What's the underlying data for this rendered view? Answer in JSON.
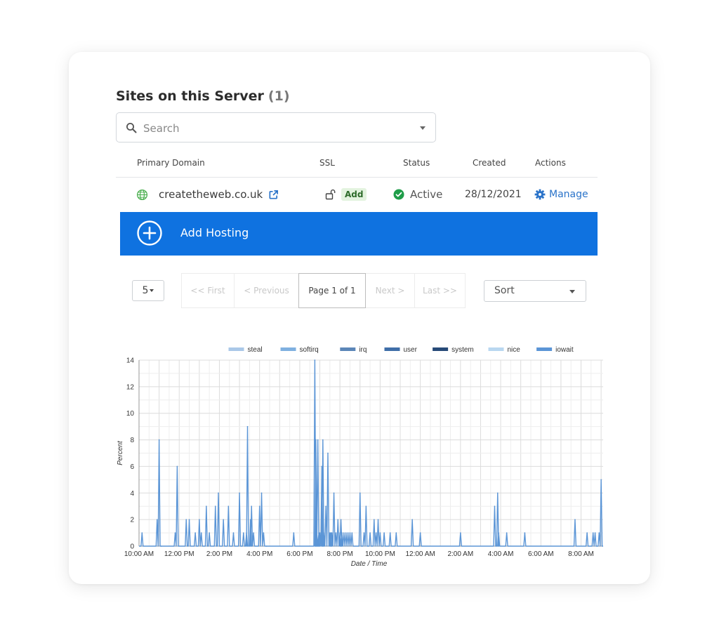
{
  "sites": {
    "title": "Sites on this Server",
    "count": "(1)",
    "search": {
      "placeholder": "Search"
    },
    "columns": [
      "Primary Domain",
      "SSL",
      "Status",
      "Created",
      "Actions"
    ],
    "rows": [
      {
        "domain": "createtheweb.co.uk",
        "ssl": "Add",
        "status": "Active",
        "created": "28/12/2021",
        "action": "Manage"
      }
    ],
    "add_hosting_label": "Add Hosting"
  },
  "pagination": {
    "per_page": "5",
    "first": "<< First",
    "previous": "< Previous",
    "current": "Page 1 of 1",
    "next": "Next >",
    "last": "Last >>",
    "sort_label": "Sort"
  },
  "colors": {
    "accent": "#0f72e0",
    "link": "#2a73c9",
    "active_status": "#1f9d49",
    "domain_icon": "#4caf50"
  },
  "icons": [
    "search-icon",
    "globe-icon",
    "external-link-icon",
    "unlock-icon",
    "check-circle-icon",
    "gear-icon",
    "plus-circle-icon"
  ],
  "chart_data": {
    "type": "line",
    "title": "",
    "xlabel": "Date / Time",
    "ylabel": "Percent",
    "ylim": [
      0,
      14
    ],
    "yticks": [
      0,
      2,
      4,
      6,
      8,
      10,
      12,
      14
    ],
    "xticks": [
      "10:00 AM",
      "12:00 PM",
      "2:00 PM",
      "4:00 PM",
      "6:00 PM",
      "8:00 PM",
      "10:00 PM",
      "12:00 AM",
      "2:00 AM",
      "4:00 AM",
      "6:00 AM",
      "8:00 AM"
    ],
    "x_range_hours": [
      0,
      23.1
    ],
    "grid": true,
    "legend_position": "top",
    "legend": [
      {
        "name": "steal",
        "color": "#aac8e8"
      },
      {
        "name": "softirq",
        "color": "#7fb0e0"
      },
      {
        "name": "irq",
        "color": "#5b86b8"
      },
      {
        "name": "user",
        "color": "#3f6ea8"
      },
      {
        "name": "system",
        "color": "#274a78"
      },
      {
        "name": "nice",
        "color": "#b9d7f0"
      },
      {
        "name": "iowait",
        "color": "#5b95d6"
      }
    ],
    "series": [
      {
        "name": "iowait",
        "x": [
          0.15,
          0.9,
          1.0,
          1.1,
          1.8,
          1.9,
          2.35,
          2.5,
          2.8,
          3.0,
          3.1,
          3.35,
          3.5,
          3.8,
          3.95,
          4.2,
          4.45,
          4.7,
          5.0,
          5.2,
          5.35,
          5.4,
          5.55,
          5.6,
          5.7,
          6.0,
          6.1,
          6.2,
          6.35,
          7.7,
          8.75,
          8.8,
          8.85,
          8.9,
          8.95,
          9.0,
          9.1,
          9.15,
          9.2,
          9.3,
          9.4,
          9.5,
          9.55,
          9.6,
          9.7,
          9.8,
          9.9,
          10.0,
          10.05,
          10.1,
          10.2,
          10.3,
          10.4,
          10.5,
          10.6,
          11.0,
          11.2,
          11.3,
          11.5,
          11.7,
          11.8,
          11.9,
          12.0,
          12.2,
          12.5,
          12.8,
          13.6,
          14.0,
          16.0,
          17.7,
          17.85,
          17.9,
          18.3,
          19.2,
          21.7,
          22.3,
          22.6,
          22.7,
          22.9,
          23.0
        ],
        "y": [
          1,
          2,
          8,
          0,
          1,
          6,
          2,
          2,
          1,
          2,
          1,
          3,
          1,
          3,
          4,
          2,
          3,
          1,
          4,
          1,
          1,
          9,
          2,
          3,
          1,
          3,
          4,
          1,
          0,
          1,
          14,
          8,
          1,
          8,
          1,
          1,
          6,
          8,
          1,
          3,
          7,
          1,
          1,
          1,
          4,
          1,
          2,
          1,
          2,
          1,
          1,
          1,
          1,
          1,
          1,
          4,
          1,
          3,
          1,
          2,
          1,
          2,
          1,
          1,
          1,
          1,
          2,
          1,
          1,
          3,
          4,
          1,
          1,
          1,
          2,
          1,
          1,
          1,
          1,
          5
        ]
      }
    ]
  }
}
